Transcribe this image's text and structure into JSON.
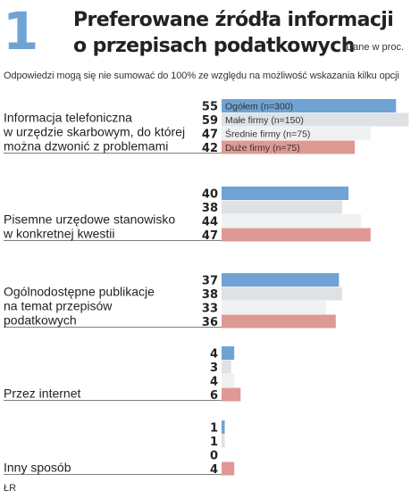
{
  "header": {
    "number": "1",
    "title_line1": "Preferowane źródła informacji",
    "title_line2": "o przepisach podatkowych",
    "source_note": "Dane w proc.",
    "note": "Odpowiedzi mogą się nie sumować do 100% ze względu na możliwość wskazania kilku opcji",
    "footer": "ŁR"
  },
  "colors": {
    "accent": "#6fa3d3",
    "series": [
      "#6fa3d3",
      "#dfe2e5",
      "#f0f1f2",
      "#df9994"
    ]
  },
  "chart_data": {
    "type": "bar",
    "orientation": "horizontal",
    "categories": [
      [
        "Informacja telefoniczna",
        "w urzędzie skarbowym, do której",
        "można dzwonić z problemami"
      ],
      [
        "Pisemne urzędowe stanowisko",
        "w konkretnej kwestii"
      ],
      [
        "Ogólnodostępne publikacje",
        "na temat przepisów",
        "podatkowych"
      ],
      [
        "Przez internet"
      ],
      [
        "Inny sposób"
      ]
    ],
    "series": [
      {
        "name": "Ogółem (n=300)",
        "values": [
          55,
          40,
          37,
          4,
          1
        ]
      },
      {
        "name": "Małe firmy (n=150)",
        "values": [
          59,
          38,
          38,
          3,
          1
        ]
      },
      {
        "name": "Średnie firmy (n=75)",
        "values": [
          47,
          44,
          33,
          4,
          0
        ]
      },
      {
        "name": "Duże firmy (n=75)",
        "values": [
          42,
          47,
          36,
          6,
          4
        ]
      }
    ],
    "legend": "inside-first-group",
    "grid": false
  }
}
